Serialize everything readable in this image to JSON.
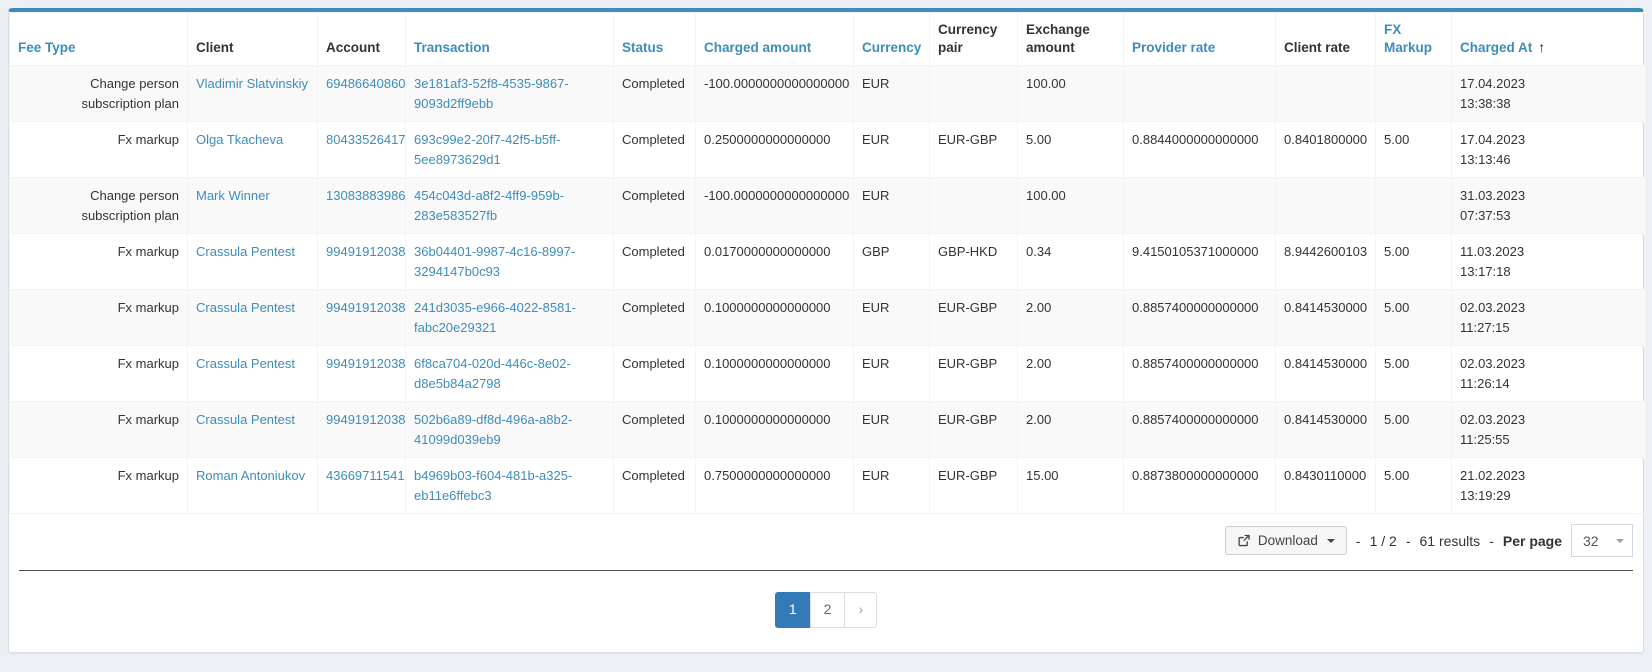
{
  "colors": {
    "accent_blue": "#3c8dbc",
    "active_page_blue": "#337ab7",
    "page_background": "#ecf0f5",
    "row_stripe": "#f9f9f9"
  },
  "table": {
    "columns": [
      {
        "key": "fee_type",
        "label": "Fee Type",
        "sortable": true
      },
      {
        "key": "client",
        "label": "Client",
        "sortable": false
      },
      {
        "key": "account",
        "label": "Account",
        "sortable": false
      },
      {
        "key": "transaction",
        "label": "Transaction",
        "sortable": true
      },
      {
        "key": "status",
        "label": "Status",
        "sortable": true
      },
      {
        "key": "charged_amount",
        "label": "Charged amount",
        "sortable": true
      },
      {
        "key": "currency",
        "label": "Currency",
        "sortable": true
      },
      {
        "key": "currency_pair",
        "label": "Currency pair",
        "sortable": false
      },
      {
        "key": "exchange_amount",
        "label": "Exchange amount",
        "sortable": false
      },
      {
        "key": "provider_rate",
        "label": "Provider rate",
        "sortable": true
      },
      {
        "key": "client_rate",
        "label": "Client rate",
        "sortable": false
      },
      {
        "key": "fx_markup",
        "label": "FX Markup",
        "sortable": true
      },
      {
        "key": "charged_at",
        "label": "Charged At",
        "sortable": true,
        "sorted": true,
        "sort_icon": "arrow-up"
      }
    ],
    "rows": [
      {
        "fee_type": "Change person subscription plan",
        "client": "Vladimir Slatvinskiy",
        "account": "69486640860",
        "transaction": "3e181af3-52f8-4535-9867-9093d2ff9ebb",
        "status": "Completed",
        "charged_amount": "-100.0000000000000000",
        "currency": "EUR",
        "currency_pair": "",
        "exchange_amount": "100.00",
        "provider_rate": "",
        "client_rate": "",
        "fx_markup": "",
        "charged_at": "17.04.2023\n13:38:38"
      },
      {
        "fee_type": "Fx markup",
        "client": "Olga Tkacheva",
        "account": "80433526417",
        "transaction": "693c99e2-20f7-42f5-b5ff-5ee8973629d1",
        "status": "Completed",
        "charged_amount": "0.2500000000000000",
        "currency": "EUR",
        "currency_pair": "EUR-GBP",
        "exchange_amount": "5.00",
        "provider_rate": "0.8844000000000000",
        "client_rate": "0.8401800000",
        "fx_markup": "5.00",
        "charged_at": "17.04.2023\n13:13:46"
      },
      {
        "fee_type": "Change person subscription plan",
        "client": "Mark Winner",
        "account": "13083883986",
        "transaction": "454c043d-a8f2-4ff9-959b-283e583527fb",
        "status": "Completed",
        "charged_amount": "-100.0000000000000000",
        "currency": "EUR",
        "currency_pair": "",
        "exchange_amount": "100.00",
        "provider_rate": "",
        "client_rate": "",
        "fx_markup": "",
        "charged_at": "31.03.2023\n07:37:53"
      },
      {
        "fee_type": "Fx markup",
        "client": "Crassula Pentest",
        "account": "99491912038",
        "transaction": "36b04401-9987-4c16-8997-3294147b0c93",
        "status": "Completed",
        "charged_amount": "0.0170000000000000",
        "currency": "GBP",
        "currency_pair": "GBP-HKD",
        "exchange_amount": "0.34",
        "provider_rate": "9.4150105371000000",
        "client_rate": "8.9442600103",
        "fx_markup": "5.00",
        "charged_at": "11.03.2023\n13:17:18"
      },
      {
        "fee_type": "Fx markup",
        "client": "Crassula Pentest",
        "account": "99491912038",
        "transaction": "241d3035-e966-4022-8581-fabc20e29321",
        "status": "Completed",
        "charged_amount": "0.1000000000000000",
        "currency": "EUR",
        "currency_pair": "EUR-GBP",
        "exchange_amount": "2.00",
        "provider_rate": "0.8857400000000000",
        "client_rate": "0.8414530000",
        "fx_markup": "5.00",
        "charged_at": "02.03.2023\n11:27:15"
      },
      {
        "fee_type": "Fx markup",
        "client": "Crassula Pentest",
        "account": "99491912038",
        "transaction": "6f8ca704-020d-446c-8e02-d8e5b84a2798",
        "status": "Completed",
        "charged_amount": "0.1000000000000000",
        "currency": "EUR",
        "currency_pair": "EUR-GBP",
        "exchange_amount": "2.00",
        "provider_rate": "0.8857400000000000",
        "client_rate": "0.8414530000",
        "fx_markup": "5.00",
        "charged_at": "02.03.2023\n11:26:14"
      },
      {
        "fee_type": "Fx markup",
        "client": "Crassula Pentest",
        "account": "99491912038",
        "transaction": "502b6a89-df8d-496a-a8b2-41099d039eb9",
        "status": "Completed",
        "charged_amount": "0.1000000000000000",
        "currency": "EUR",
        "currency_pair": "EUR-GBP",
        "exchange_amount": "2.00",
        "provider_rate": "0.8857400000000000",
        "client_rate": "0.8414530000",
        "fx_markup": "5.00",
        "charged_at": "02.03.2023\n11:25:55"
      },
      {
        "fee_type": "Fx markup",
        "client": "Roman Antoniukov",
        "account": "43669711541",
        "transaction": "b4969b03-f604-481b-a325-eb11e6ffebc3",
        "status": "Completed",
        "charged_amount": "0.7500000000000000",
        "currency": "EUR",
        "currency_pair": "EUR-GBP",
        "exchange_amount": "15.00",
        "provider_rate": "0.8873800000000000",
        "client_rate": "0.8430110000",
        "fx_markup": "5.00",
        "charged_at": "21.02.2023\n13:19:29"
      }
    ]
  },
  "footer": {
    "download_label": "Download",
    "download_icon": "export-icon",
    "download_caret_icon": "caret-down",
    "separator": "-",
    "position": "1 / 2",
    "results": "61 results",
    "per_page_label": "Per page",
    "per_page_value": "32",
    "per_page_caret_icon": "caret-down"
  },
  "pagination": {
    "pages": [
      {
        "label": "1",
        "active": true
      },
      {
        "label": "2",
        "active": false
      }
    ],
    "next_label": "›"
  }
}
